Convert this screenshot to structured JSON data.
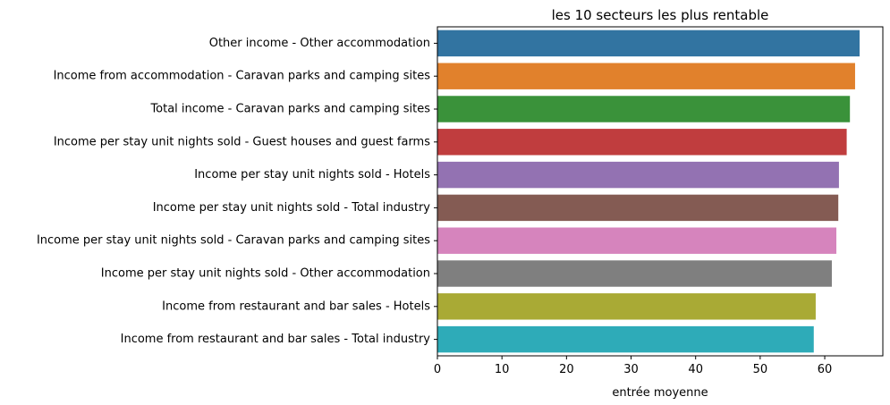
{
  "chart_data": {
    "type": "bar",
    "orientation": "horizontal",
    "title": "les 10 secteurs les plus rentable",
    "xlabel": "entrée moyenne",
    "ylabel": "",
    "xlim": [
      0,
      69
    ],
    "xticks": [
      0,
      10,
      20,
      30,
      40,
      50,
      60
    ],
    "grid": false,
    "categories": [
      "Other income - Other accommodation",
      "Income from accommodation - Caravan parks and camping sites",
      "Total income - Caravan parks and camping sites",
      "Income per stay unit nights sold - Guest houses and guest farms",
      "Income per stay unit nights sold - Hotels",
      "Income per stay unit nights sold - Total industry",
      "Income per stay unit nights sold - Caravan parks and camping sites",
      "Income per stay unit nights sold - Other accommodation",
      "Income from restaurant and bar sales - Hotels",
      "Income from restaurant and bar sales - Total industry"
    ],
    "values": [
      65.4,
      64.7,
      63.9,
      63.4,
      62.2,
      62.1,
      61.8,
      61.1,
      58.6,
      58.3
    ],
    "colors": [
      "#3274a1",
      "#e1812c",
      "#3a923a",
      "#c03d3e",
      "#9372b2",
      "#845b53",
      "#d684bd",
      "#7f7f7f",
      "#a9aa35",
      "#2eabb8"
    ]
  }
}
